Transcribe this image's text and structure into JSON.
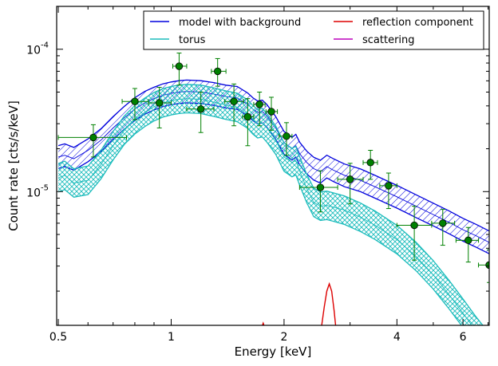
{
  "chart_data": {
    "type": "line",
    "xlabel": "Energy [keV]",
    "ylabel": "Count rate [cts/s/keV]",
    "xscale": "log",
    "yscale": "log",
    "xlim": [
      0.495,
      7.05
    ],
    "ylim": [
      1.15e-06,
      0.0002
    ],
    "x_ticks": [
      {
        "value": 0.5,
        "label": "0.5"
      },
      {
        "value": 1,
        "label": "1"
      },
      {
        "value": 2,
        "label": "2"
      },
      {
        "value": 4,
        "label": "4"
      },
      {
        "value": 6,
        "label": "6"
      }
    ],
    "y_ticks": [
      {
        "value": 1e-05,
        "base": "10",
        "exp": "-5"
      },
      {
        "value": 0.0001,
        "base": "10",
        "exp": "-4"
      }
    ],
    "legend": {
      "placement": "top-right",
      "entries": [
        {
          "name": "model with background",
          "color": "#0000dd"
        },
        {
          "name": "torus",
          "color": "#1cbcbc"
        },
        {
          "name": "reflection component",
          "color": "#dd0000"
        },
        {
          "name": "scattering",
          "color": "#bb00bb"
        }
      ]
    },
    "series": [
      {
        "name": "model with background",
        "color": "#0000dd",
        "band_width_dex": 0.08,
        "points": [
          [
            0.5,
            1.75e-05
          ],
          [
            0.52,
            1.8e-05
          ],
          [
            0.55,
            1.7e-05
          ],
          [
            0.6,
            1.95e-05
          ],
          [
            0.65,
            2.3e-05
          ],
          [
            0.7,
            2.8e-05
          ],
          [
            0.75,
            3.3e-05
          ],
          [
            0.8,
            3.8e-05
          ],
          [
            0.85,
            4.2e-05
          ],
          [
            0.9,
            4.5e-05
          ],
          [
            0.95,
            4.75e-05
          ],
          [
            1.0,
            4.9e-05
          ],
          [
            1.05,
            5e-05
          ],
          [
            1.1,
            5.05e-05
          ],
          [
            1.2,
            5e-05
          ],
          [
            1.3,
            4.85e-05
          ],
          [
            1.4,
            4.65e-05
          ],
          [
            1.5,
            4.55e-05
          ],
          [
            1.6,
            4.1e-05
          ],
          [
            1.65,
            3.8e-05
          ],
          [
            1.7,
            3.6e-05
          ],
          [
            1.75,
            3.65e-05
          ],
          [
            1.8,
            3.4e-05
          ],
          [
            1.9,
            2.8e-05
          ],
          [
            2.0,
            2.2e-05
          ],
          [
            2.1,
            2e-05
          ],
          [
            2.15,
            2.1e-05
          ],
          [
            2.2,
            1.85e-05
          ],
          [
            2.3,
            1.6e-05
          ],
          [
            2.4,
            1.45e-05
          ],
          [
            2.5,
            1.38e-05
          ],
          [
            2.6,
            1.5e-05
          ],
          [
            2.7,
            1.42e-05
          ],
          [
            2.9,
            1.3e-05
          ],
          [
            3.2,
            1.2e-05
          ],
          [
            3.5,
            1.08e-05
          ],
          [
            4.0,
            9.2e-06
          ],
          [
            4.5,
            7.9e-06
          ],
          [
            5.0,
            6.9e-06
          ],
          [
            5.5,
            6.1e-06
          ],
          [
            6.0,
            5.4e-06
          ],
          [
            6.5,
            4.9e-06
          ],
          [
            7.05,
            4.4e-06
          ]
        ]
      },
      {
        "name": "torus",
        "color": "#1cbcbc",
        "band_width_dex": 0.1,
        "points": [
          [
            0.5,
            1.25e-05
          ],
          [
            0.52,
            1.3e-05
          ],
          [
            0.55,
            1.15e-05
          ],
          [
            0.6,
            1.2e-05
          ],
          [
            0.65,
            1.55e-05
          ],
          [
            0.7,
            2.1e-05
          ],
          [
            0.75,
            2.7e-05
          ],
          [
            0.8,
            3.2e-05
          ],
          [
            0.85,
            3.6e-05
          ],
          [
            0.9,
            3.95e-05
          ],
          [
            0.95,
            4.2e-05
          ],
          [
            1.0,
            4.35e-05
          ],
          [
            1.05,
            4.45e-05
          ],
          [
            1.1,
            4.5e-05
          ],
          [
            1.2,
            4.45e-05
          ],
          [
            1.3,
            4.25e-05
          ],
          [
            1.4,
            4.05e-05
          ],
          [
            1.5,
            3.9e-05
          ],
          [
            1.6,
            3.5e-05
          ],
          [
            1.65,
            3.2e-05
          ],
          [
            1.7,
            3e-05
          ],
          [
            1.75,
            3.05e-05
          ],
          [
            1.8,
            2.8e-05
          ],
          [
            1.9,
            2.3e-05
          ],
          [
            2.0,
            1.75e-05
          ],
          [
            2.1,
            1.6e-05
          ],
          [
            2.15,
            1.65e-05
          ],
          [
            2.2,
            1.4e-05
          ],
          [
            2.3,
            1.05e-05
          ],
          [
            2.4,
            8.4e-06
          ],
          [
            2.5,
            7.9e-06
          ],
          [
            2.6,
            8e-06
          ],
          [
            2.7,
            7.8e-06
          ],
          [
            2.9,
            7.4e-06
          ],
          [
            3.2,
            6.6e-06
          ],
          [
            3.5,
            5.8e-06
          ],
          [
            4.0,
            4.6e-06
          ],
          [
            4.5,
            3.5e-06
          ],
          [
            5.0,
            2.6e-06
          ],
          [
            5.5,
            1.9e-06
          ],
          [
            6.0,
            1.4e-06
          ],
          [
            6.5,
            1.05e-06
          ],
          [
            7.05,
            8e-07
          ]
        ]
      },
      {
        "name": "reflection component",
        "color": "#dd0000",
        "points": [
          [
            1.72,
            1e-06
          ],
          [
            1.76,
            1.19e-06
          ],
          [
            1.8,
            1e-06
          ],
          [
            2.48,
            1e-06
          ],
          [
            2.52,
            1.15e-06
          ],
          [
            2.56,
            1.55e-06
          ],
          [
            2.6,
            2e-06
          ],
          [
            2.64,
            2.25e-06
          ],
          [
            2.68,
            2e-06
          ],
          [
            2.72,
            1.45e-06
          ],
          [
            2.76,
            1e-06
          ]
        ]
      }
    ],
    "data_points": {
      "color": "#008000",
      "points": [
        {
          "x": 0.62,
          "y": 2.4e-05,
          "xlo": 0.5,
          "xhi": 0.76,
          "ylo": 1.75e-05,
          "yhi": 2.95e-05
        },
        {
          "x": 0.8,
          "y": 4.3e-05,
          "xlo": 0.74,
          "xhi": 0.87,
          "ylo": 3.2e-05,
          "yhi": 5.3e-05
        },
        {
          "x": 0.93,
          "y": 4.2e-05,
          "xlo": 0.87,
          "xhi": 1.0,
          "ylo": 2.8e-05,
          "yhi": 5.4e-05
        },
        {
          "x": 1.05,
          "y": 7.6e-05,
          "xlo": 1.01,
          "xhi": 1.1,
          "ylo": 5.6e-05,
          "yhi": 9.4e-05
        },
        {
          "x": 1.2,
          "y": 3.8e-05,
          "xlo": 1.1,
          "xhi": 1.3,
          "ylo": 2.6e-05,
          "yhi": 5e-05
        },
        {
          "x": 1.33,
          "y": 7e-05,
          "xlo": 1.28,
          "xhi": 1.4,
          "ylo": 5.5e-05,
          "yhi": 8.6e-05
        },
        {
          "x": 1.47,
          "y": 4.3e-05,
          "xlo": 1.39,
          "xhi": 1.56,
          "ylo": 2.9e-05,
          "yhi": 5.7e-05
        },
        {
          "x": 1.6,
          "y": 3.35e-05,
          "xlo": 1.55,
          "xhi": 1.66,
          "ylo": 2.1e-05,
          "yhi": 4.5e-05
        },
        {
          "x": 1.72,
          "y": 4.1e-05,
          "xlo": 1.66,
          "xhi": 1.78,
          "ylo": 2.9e-05,
          "yhi": 5e-05
        },
        {
          "x": 1.85,
          "y": 3.65e-05,
          "xlo": 1.79,
          "xhi": 1.92,
          "ylo": 2.7e-05,
          "yhi": 4.6e-05
        },
        {
          "x": 2.03,
          "y": 2.45e-05,
          "xlo": 1.94,
          "xhi": 2.1,
          "ylo": 1.8e-05,
          "yhi": 3.05e-05
        },
        {
          "x": 2.5,
          "y": 1.07e-05,
          "xlo": 2.2,
          "xhi": 2.78,
          "ylo": 7.2e-06,
          "yhi": 1.4e-05
        },
        {
          "x": 3.0,
          "y": 1.22e-05,
          "xlo": 2.78,
          "xhi": 3.25,
          "ylo": 8.2e-06,
          "yhi": 1.58e-05
        },
        {
          "x": 3.4,
          "y": 1.6e-05,
          "xlo": 3.25,
          "xhi": 3.55,
          "ylo": 1.22e-05,
          "yhi": 1.95e-05
        },
        {
          "x": 3.8,
          "y": 1.1e-05,
          "xlo": 3.6,
          "xhi": 4.0,
          "ylo": 7.6e-06,
          "yhi": 1.35e-05
        },
        {
          "x": 4.45,
          "y": 5.8e-06,
          "xlo": 4.0,
          "xhi": 4.95,
          "ylo": 3.3e-06,
          "yhi": 7.9e-06
        },
        {
          "x": 5.3,
          "y": 6e-06,
          "xlo": 4.95,
          "xhi": 5.7,
          "ylo": 4.2e-06,
          "yhi": 7.5e-06
        },
        {
          "x": 6.2,
          "y": 4.55e-06,
          "xlo": 5.75,
          "xhi": 6.6,
          "ylo": 3.2e-06,
          "yhi": 5.6e-06
        },
        {
          "x": 7.05,
          "y": 3.05e-06,
          "xlo": 6.6,
          "xhi": 7.05,
          "ylo": 2.3e-06,
          "yhi": 3.9e-06
        }
      ]
    }
  }
}
